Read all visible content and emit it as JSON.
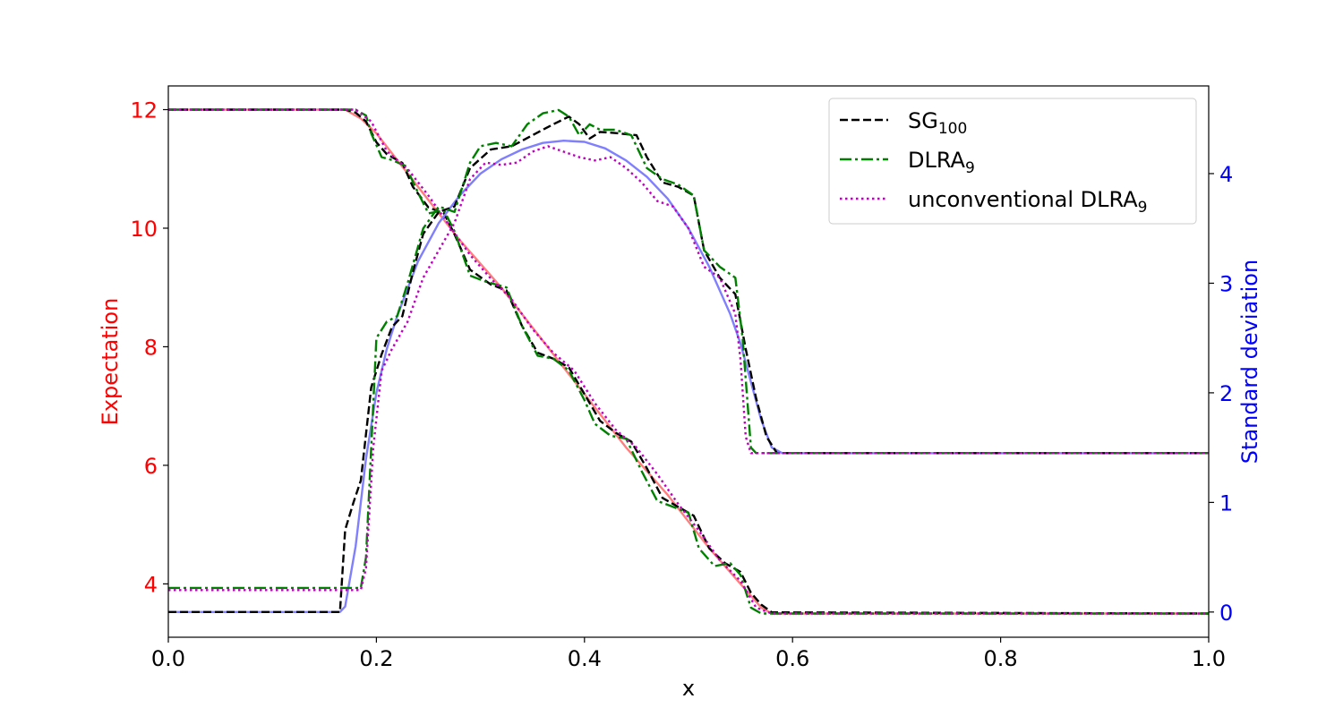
{
  "chart_data": {
    "type": "line",
    "xlabel": "x",
    "ylabel_left": "Expectation",
    "ylabel_right": "Standard deviation",
    "xlim": [
      0.0,
      1.0
    ],
    "ylim_left": [
      3.1,
      12.4
    ],
    "ylim_right": [
      -0.23,
      4.8
    ],
    "x_ticks": [
      "0.0",
      "0.2",
      "0.4",
      "0.6",
      "0.8",
      "1.0"
    ],
    "y_left_ticks": [
      "4",
      "6",
      "8",
      "10",
      "12"
    ],
    "y_right_ticks": [
      "0",
      "1",
      "2",
      "3",
      "4"
    ],
    "grid": false,
    "legend_position": "top-right",
    "colors": {
      "left_axis": "#ff0000",
      "right_axis": "#0000ff",
      "sg": "#000000",
      "dlra": "#008000",
      "unconventional": "#bf00bf",
      "expectation_exact": "#ff7f7f",
      "std_exact": "#7f7fff"
    },
    "legend": [
      {
        "text": "SG",
        "sub": "100",
        "style": "dashed",
        "color": "#000000"
      },
      {
        "text": "DLRA",
        "sub": "9",
        "style": "dashdot",
        "color": "#008000"
      },
      {
        "text": "unconventional DLRA",
        "sub": "9",
        "style": "dotted",
        "color": "#bf00bf"
      }
    ],
    "series": [
      {
        "axis": "left",
        "color": "#ff7f7f",
        "style": "solid",
        "width": 2.4,
        "x": [
          0,
          0.17,
          0.185,
          0.2,
          0.24,
          0.28,
          0.32,
          0.36,
          0.4,
          0.44,
          0.48,
          0.52,
          0.55,
          0.57,
          0.58,
          1.0
        ],
        "y": [
          12.0,
          12.0,
          11.85,
          11.6,
          10.7,
          9.8,
          9.0,
          8.1,
          7.2,
          6.3,
          5.5,
          4.6,
          4.0,
          3.6,
          3.5,
          3.5
        ]
      },
      {
        "axis": "left",
        "color": "#000000",
        "style": "dashed",
        "width": 2.4,
        "x": [
          0,
          0.17,
          0.18,
          0.19,
          0.2,
          0.21,
          0.225,
          0.235,
          0.25,
          0.265,
          0.275,
          0.29,
          0.31,
          0.325,
          0.34,
          0.355,
          0.37,
          0.385,
          0.4,
          0.415,
          0.43,
          0.445,
          0.46,
          0.475,
          0.49,
          0.505,
          0.52,
          0.535,
          0.55,
          0.56,
          0.57,
          0.58,
          1.0
        ],
        "y": [
          12.0,
          12.0,
          11.95,
          11.8,
          11.45,
          11.25,
          11.1,
          10.7,
          10.35,
          10.25,
          9.9,
          9.3,
          9.05,
          8.95,
          8.35,
          7.9,
          7.8,
          7.65,
          7.2,
          6.75,
          6.55,
          6.4,
          5.95,
          5.45,
          5.3,
          5.15,
          4.6,
          4.35,
          4.2,
          3.85,
          3.65,
          3.52,
          3.5
        ]
      },
      {
        "axis": "left",
        "color": "#008000",
        "style": "dashdot",
        "width": 2.4,
        "x": [
          0,
          0.18,
          0.19,
          0.195,
          0.205,
          0.215,
          0.228,
          0.24,
          0.25,
          0.265,
          0.275,
          0.29,
          0.305,
          0.325,
          0.34,
          0.355,
          0.37,
          0.385,
          0.4,
          0.41,
          0.425,
          0.44,
          0.455,
          0.47,
          0.485,
          0.5,
          0.51,
          0.525,
          0.54,
          0.55,
          0.56,
          0.57,
          1.0
        ],
        "y": [
          12.0,
          12.0,
          11.9,
          11.6,
          11.2,
          11.15,
          11.05,
          10.6,
          10.25,
          10.3,
          9.95,
          9.2,
          9.1,
          9.0,
          8.35,
          7.85,
          7.8,
          7.6,
          7.1,
          6.7,
          6.5,
          6.45,
          5.9,
          5.4,
          5.3,
          5.2,
          4.6,
          4.3,
          4.35,
          4.15,
          3.6,
          3.5,
          3.5
        ]
      },
      {
        "axis": "left",
        "color": "#bf00bf",
        "style": "dotted",
        "width": 2.4,
        "x": [
          0,
          0.18,
          0.195,
          0.21,
          0.23,
          0.25,
          0.27,
          0.29,
          0.31,
          0.33,
          0.35,
          0.37,
          0.39,
          0.41,
          0.43,
          0.45,
          0.47,
          0.49,
          0.51,
          0.53,
          0.55,
          0.565,
          0.58,
          1.0
        ],
        "y": [
          12.0,
          12.0,
          11.8,
          11.3,
          11.0,
          10.55,
          10.05,
          9.55,
          9.15,
          8.8,
          8.3,
          7.9,
          7.6,
          7.05,
          6.6,
          6.3,
          5.85,
          5.35,
          4.9,
          4.4,
          4.05,
          3.6,
          3.5,
          3.5
        ]
      },
      {
        "axis": "right",
        "color": "#7f7fff",
        "style": "solid",
        "width": 2.4,
        "x": [
          0,
          0.165,
          0.17,
          0.18,
          0.19,
          0.2,
          0.21,
          0.22,
          0.24,
          0.26,
          0.28,
          0.3,
          0.32,
          0.34,
          0.36,
          0.38,
          0.4,
          0.42,
          0.44,
          0.46,
          0.48,
          0.5,
          0.52,
          0.54,
          0.55,
          0.56,
          0.57,
          0.58,
          0.59,
          1.0
        ],
        "y": [
          0,
          0,
          0.05,
          0.6,
          1.4,
          2.0,
          2.4,
          2.7,
          3.2,
          3.55,
          3.8,
          4.0,
          4.13,
          4.22,
          4.28,
          4.3,
          4.29,
          4.23,
          4.12,
          3.97,
          3.77,
          3.5,
          3.15,
          2.72,
          2.45,
          2.1,
          1.75,
          1.5,
          1.45,
          1.45
        ]
      },
      {
        "axis": "right",
        "color": "#000000",
        "style": "dashed",
        "width": 2.4,
        "x": [
          0,
          0.165,
          0.17,
          0.178,
          0.185,
          0.195,
          0.205,
          0.215,
          0.225,
          0.235,
          0.245,
          0.26,
          0.275,
          0.29,
          0.31,
          0.33,
          0.35,
          0.37,
          0.385,
          0.395,
          0.405,
          0.415,
          0.43,
          0.45,
          0.46,
          0.475,
          0.49,
          0.505,
          0.515,
          0.53,
          0.545,
          0.555,
          0.565,
          0.575,
          0.585,
          1.0
        ],
        "y": [
          0,
          0,
          0.75,
          1.0,
          1.2,
          2.05,
          2.35,
          2.6,
          2.7,
          3.1,
          3.45,
          3.65,
          3.7,
          4.05,
          4.22,
          4.25,
          4.35,
          4.45,
          4.52,
          4.45,
          4.32,
          4.38,
          4.37,
          4.35,
          4.15,
          3.92,
          3.88,
          3.8,
          3.3,
          3.05,
          2.9,
          2.4,
          1.95,
          1.6,
          1.45,
          1.45
        ]
      },
      {
        "axis": "right",
        "color": "#008000",
        "style": "dashdot",
        "width": 2.4,
        "x": [
          0,
          0.185,
          0.19,
          0.2,
          0.21,
          0.22,
          0.23,
          0.245,
          0.26,
          0.275,
          0.29,
          0.3,
          0.315,
          0.33,
          0.345,
          0.36,
          0.375,
          0.385,
          0.395,
          0.405,
          0.415,
          0.43,
          0.445,
          0.46,
          0.475,
          0.49,
          0.505,
          0.515,
          0.53,
          0.545,
          0.552,
          0.56,
          0.565,
          0.58,
          1.0
        ],
        "y": [
          0.22,
          0.22,
          0.5,
          2.5,
          2.65,
          2.7,
          3.0,
          3.5,
          3.7,
          3.65,
          4.1,
          4.25,
          4.28,
          4.25,
          4.45,
          4.55,
          4.58,
          4.52,
          4.35,
          4.45,
          4.4,
          4.4,
          4.35,
          4.05,
          3.95,
          3.9,
          3.8,
          3.3,
          3.15,
          3.05,
          2.5,
          1.5,
          1.45,
          1.45,
          1.45
        ]
      },
      {
        "axis": "right",
        "color": "#bf00bf",
        "style": "dotted",
        "width": 2.4,
        "x": [
          0,
          0.185,
          0.19,
          0.197,
          0.205,
          0.215,
          0.23,
          0.245,
          0.26,
          0.275,
          0.29,
          0.305,
          0.32,
          0.335,
          0.35,
          0.365,
          0.38,
          0.395,
          0.41,
          0.425,
          0.44,
          0.455,
          0.47,
          0.485,
          0.5,
          0.515,
          0.53,
          0.545,
          0.55,
          0.555,
          0.56,
          1.0
        ],
        "y": [
          0.2,
          0.2,
          0.4,
          1.5,
          2.2,
          2.4,
          2.65,
          3.05,
          3.3,
          3.55,
          3.95,
          4.1,
          4.08,
          4.1,
          4.2,
          4.25,
          4.2,
          4.15,
          4.12,
          4.15,
          4.05,
          3.92,
          3.75,
          3.7,
          3.5,
          3.15,
          3.05,
          2.72,
          2.3,
          1.6,
          1.45,
          1.45
        ]
      }
    ]
  }
}
